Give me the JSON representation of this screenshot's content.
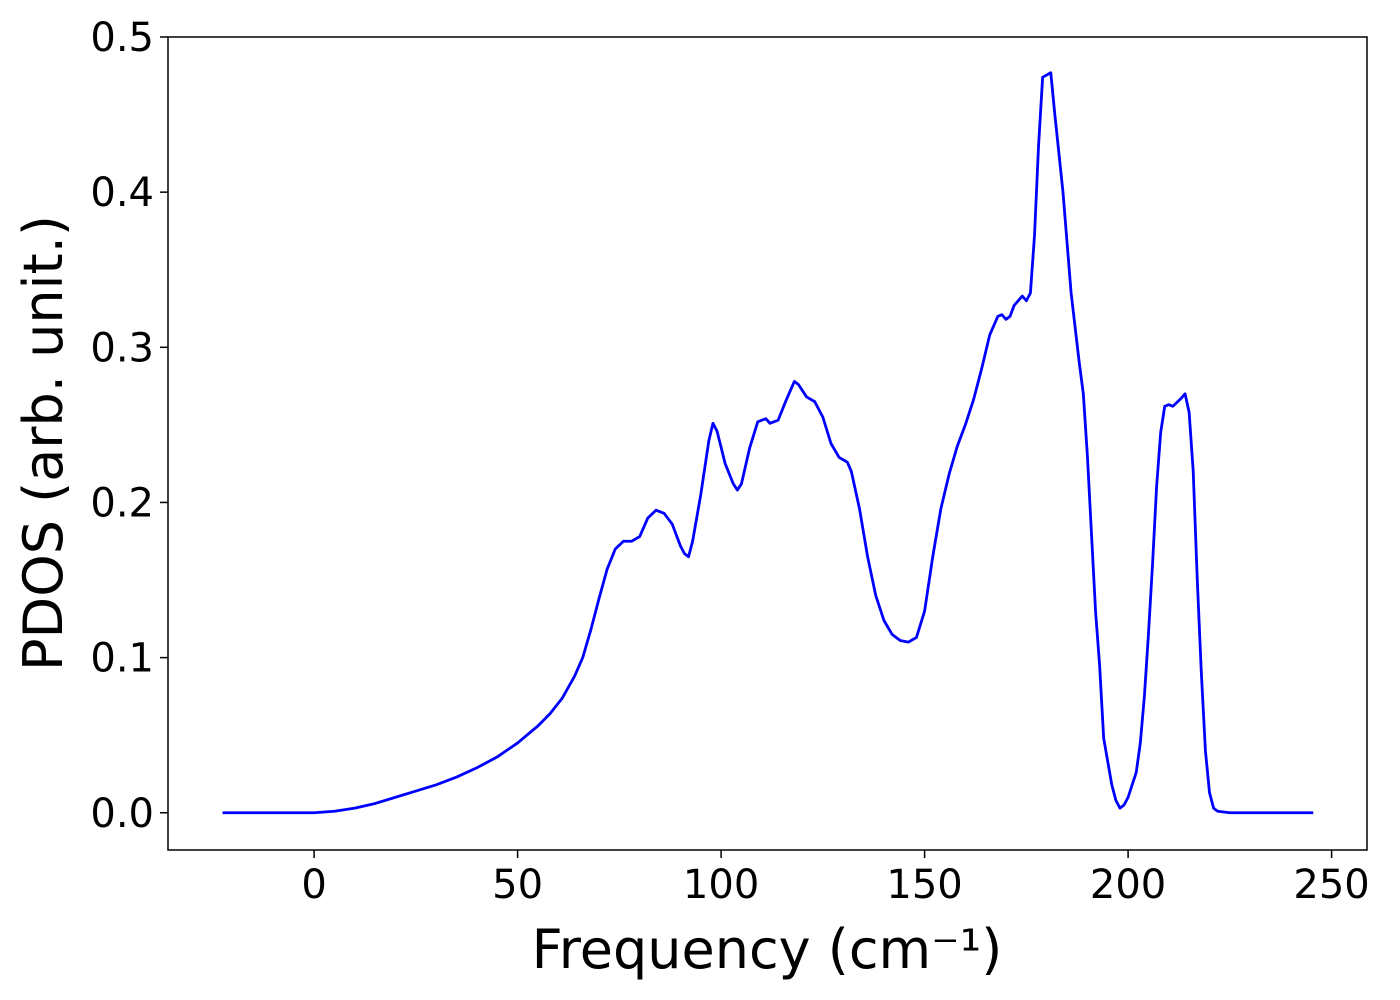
{
  "chart_data": {
    "type": "line",
    "xlabel": "Frequency (cm⁻¹)",
    "ylabel": "PDOS (arb. unit.)",
    "x": [
      -22.5,
      0,
      5,
      10,
      15,
      20,
      25,
      30,
      35,
      40,
      45,
      50,
      55,
      58,
      61,
      64,
      66,
      68,
      70,
      72,
      74,
      76,
      78,
      80,
      82,
      84,
      86,
      88,
      90,
      91,
      92,
      93,
      95,
      97,
      98,
      99,
      101,
      103,
      104,
      105,
      107,
      109,
      111,
      112,
      114,
      116,
      118,
      119,
      121,
      123,
      125,
      127,
      129,
      131,
      132,
      134,
      136,
      138,
      140,
      142,
      144,
      146,
      148,
      150,
      152,
      154,
      156,
      158,
      160,
      162,
      164,
      166,
      168,
      169,
      170,
      171,
      172,
      174,
      175,
      176,
      177,
      178,
      179,
      181,
      182,
      184,
      186,
      188,
      189,
      190,
      192,
      193,
      194,
      196,
      197,
      198,
      199,
      200,
      202,
      203,
      204,
      205,
      206,
      207,
      208,
      209,
      210,
      211,
      213,
      214,
      215,
      216,
      217,
      218,
      219,
      220,
      221,
      222,
      225,
      245.5
    ],
    "series": [
      {
        "name": "PDOS",
        "color": "#0000ff",
        "values": [
          0,
          0,
          0.001,
          0.003,
          0.006,
          0.01,
          0.014,
          0.018,
          0.023,
          0.029,
          0.036,
          0.045,
          0.056,
          0.064,
          0.074,
          0.088,
          0.1,
          0.118,
          0.138,
          0.157,
          0.17,
          0.175,
          0.175,
          0.178,
          0.19,
          0.195,
          0.193,
          0.186,
          0.172,
          0.167,
          0.165,
          0.175,
          0.205,
          0.24,
          0.251,
          0.246,
          0.225,
          0.212,
          0.208,
          0.212,
          0.235,
          0.252,
          0.254,
          0.251,
          0.253,
          0.266,
          0.278,
          0.276,
          0.268,
          0.265,
          0.255,
          0.238,
          0.229,
          0.226,
          0.22,
          0.196,
          0.165,
          0.14,
          0.124,
          0.115,
          0.111,
          0.11,
          0.113,
          0.13,
          0.165,
          0.196,
          0.218,
          0.236,
          0.25,
          0.266,
          0.286,
          0.308,
          0.32,
          0.321,
          0.318,
          0.32,
          0.327,
          0.333,
          0.33,
          0.335,
          0.372,
          0.43,
          0.474,
          0.477,
          0.45,
          0.4,
          0.335,
          0.29,
          0.27,
          0.23,
          0.13,
          0.095,
          0.048,
          0.018,
          0.008,
          0.003,
          0.005,
          0.01,
          0.026,
          0.045,
          0.075,
          0.115,
          0.16,
          0.21,
          0.245,
          0.262,
          0.263,
          0.262,
          0.267,
          0.27,
          0.258,
          0.22,
          0.15,
          0.09,
          0.04,
          0.013,
          0.003,
          0.001,
          0,
          0
        ]
      }
    ],
    "xlim": [
      -35.9,
      258.7
    ],
    "ylim": [
      -0.024,
      0.5
    ],
    "xticks": [
      0,
      50,
      100,
      150,
      200,
      250
    ],
    "yticks": [
      {
        "value": 0,
        "label": "0.0"
      },
      0.1,
      0.2,
      0.3,
      0.4,
      0.5
    ],
    "grid": false
  }
}
